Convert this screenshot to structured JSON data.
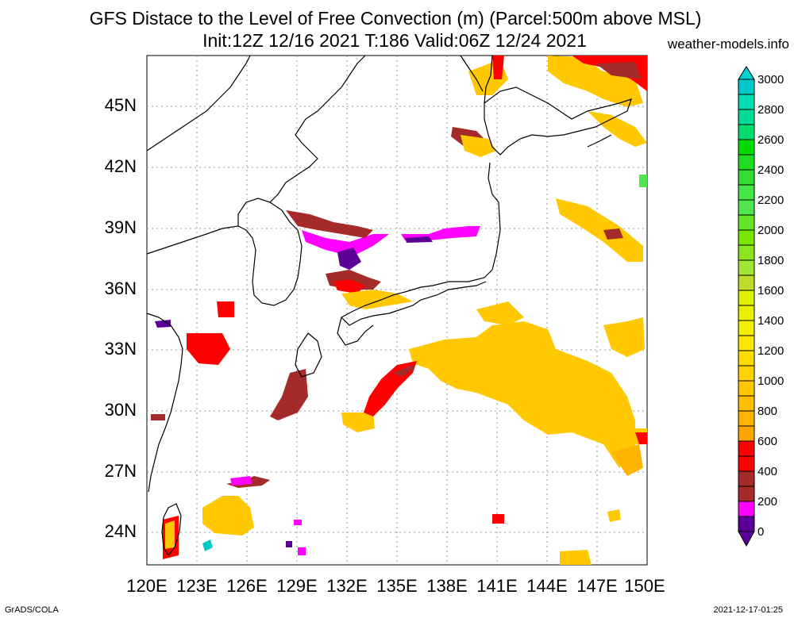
{
  "title": {
    "line1": "GFS Distace to the Level of Free Convection (m) (Parcel:500m above MSL)",
    "line2": "Init:12Z 12/16 2021 T:186 Valid:06Z 12/24 2021",
    "site": "weather-models.info"
  },
  "axes": {
    "lat_labels": [
      "45N",
      "42N",
      "39N",
      "36N",
      "33N",
      "30N",
      "27N",
      "24N"
    ],
    "lon_labels": [
      "120E",
      "123E",
      "126E",
      "129E",
      "132E",
      "135E",
      "138E",
      "141E",
      "144E",
      "147E",
      "150E"
    ]
  },
  "colorbar": {
    "labels": [
      "3000",
      "2800",
      "2600",
      "2400",
      "2200",
      "2000",
      "1800",
      "1600",
      "1400",
      "1200",
      "1000",
      "800",
      "600",
      "400",
      "200",
      "0"
    ],
    "colors": [
      "#00c8c8",
      "#00dc96",
      "#00dc00",
      "#32dc32",
      "#50e650",
      "#78e600",
      "#a0e632",
      "#dcf000",
      "#f0f000",
      "#ffdc00",
      "#ffc800",
      "#ffa500",
      "#ff0000",
      "#a52a2a",
      "#ff00ff",
      "#5a0096"
    ],
    "top_arrow": "#00d2d2",
    "bottom_arrow": "#5a0096"
  },
  "footer": {
    "left": "GrADS/COLA",
    "right": "2021-12-17-01:25"
  }
}
